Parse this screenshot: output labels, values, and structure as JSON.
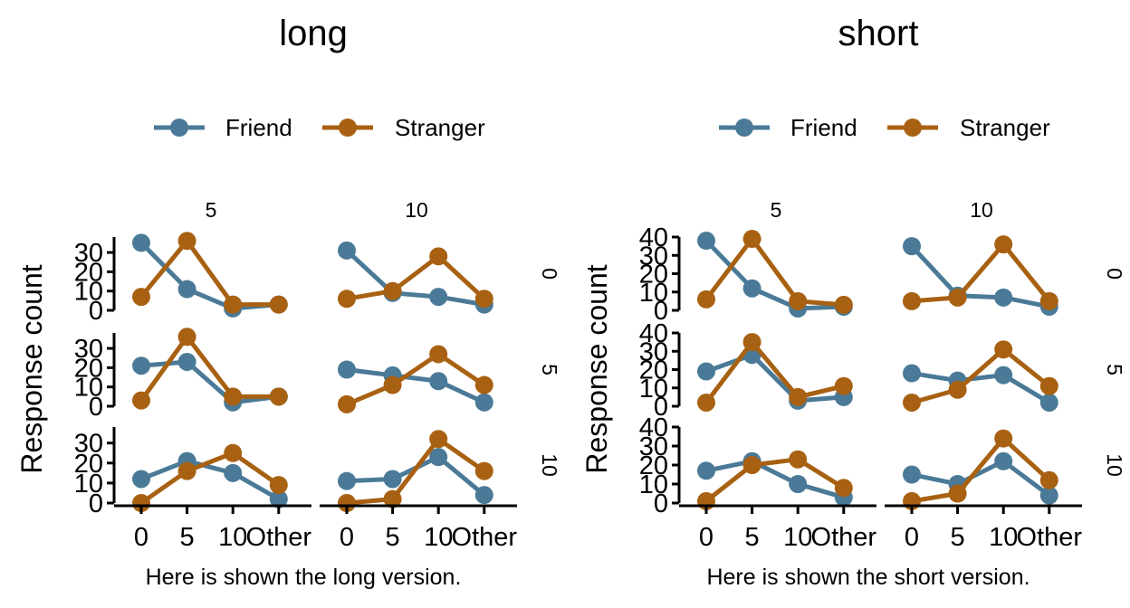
{
  "chart_data": {
    "type": "line",
    "colors": {
      "Friend": "#4a7a97",
      "Stranger": "#a86112"
    },
    "legend": {
      "position": "top",
      "entries": [
        "Friend",
        "Stranger"
      ]
    },
    "grid": false,
    "x_categories": [
      "0",
      "5",
      "10",
      "Other"
    ],
    "col_facets": [
      "5",
      "10"
    ],
    "row_facets": [
      "0",
      "5",
      "10"
    ],
    "panels": [
      {
        "title": "long",
        "xlabel": "Here is shown the long version.",
        "ylabel": "Response count",
        "ylim": [
          0,
          38
        ],
        "y_ticks": [
          0,
          10,
          20,
          30
        ],
        "cells": [
          {
            "row": "0",
            "col": "5",
            "series": [
              {
                "name": "Friend",
                "values": [
                  35,
                  11,
                  1,
                  3
                ]
              },
              {
                "name": "Stranger",
                "values": [
                  7,
                  36,
                  3,
                  3
                ]
              }
            ]
          },
          {
            "row": "0",
            "col": "10",
            "series": [
              {
                "name": "Friend",
                "values": [
                  31,
                  9,
                  7,
                  3
                ]
              },
              {
                "name": "Stranger",
                "values": [
                  6,
                  10,
                  28,
                  6
                ]
              }
            ]
          },
          {
            "row": "5",
            "col": "5",
            "series": [
              {
                "name": "Friend",
                "values": [
                  21,
                  23,
                  2,
                  5
                ]
              },
              {
                "name": "Stranger",
                "values": [
                  3,
                  36,
                  5,
                  5
                ]
              }
            ]
          },
          {
            "row": "5",
            "col": "10",
            "series": [
              {
                "name": "Friend",
                "values": [
                  19,
                  16,
                  13,
                  2
                ]
              },
              {
                "name": "Stranger",
                "values": [
                  1,
                  11,
                  27,
                  11
                ]
              }
            ]
          },
          {
            "row": "10",
            "col": "5",
            "series": [
              {
                "name": "Friend",
                "values": [
                  12,
                  21,
                  15,
                  2
                ]
              },
              {
                "name": "Stranger",
                "values": [
                  0,
                  16,
                  25,
                  9
                ]
              }
            ]
          },
          {
            "row": "10",
            "col": "10",
            "series": [
              {
                "name": "Friend",
                "values": [
                  11,
                  12,
                  23,
                  4
                ]
              },
              {
                "name": "Stranger",
                "values": [
                  0,
                  2,
                  32,
                  16
                ]
              }
            ]
          }
        ]
      },
      {
        "title": "short",
        "xlabel": "Here is shown the short version.",
        "ylabel": "Response count",
        "ylim": [
          0,
          40
        ],
        "y_ticks": [
          0,
          10,
          20,
          30,
          40
        ],
        "cells": [
          {
            "row": "0",
            "col": "5",
            "series": [
              {
                "name": "Friend",
                "values": [
                  38,
                  12,
                  1,
                  2
                ]
              },
              {
                "name": "Stranger",
                "values": [
                  6,
                  39,
                  5,
                  3
                ]
              }
            ]
          },
          {
            "row": "0",
            "col": "10",
            "series": [
              {
                "name": "Friend",
                "values": [
                  35,
                  8,
                  7,
                  2
                ]
              },
              {
                "name": "Stranger",
                "values": [
                  5,
                  7,
                  36,
                  5
                ]
              }
            ]
          },
          {
            "row": "5",
            "col": "5",
            "series": [
              {
                "name": "Friend",
                "values": [
                  19,
                  28,
                  3,
                  5
                ]
              },
              {
                "name": "Stranger",
                "values": [
                  2,
                  35,
                  5,
                  11
                ]
              }
            ]
          },
          {
            "row": "5",
            "col": "10",
            "series": [
              {
                "name": "Friend",
                "values": [
                  18,
                  14,
                  17,
                  2
                ]
              },
              {
                "name": "Stranger",
                "values": [
                  2,
                  9,
                  31,
                  11
                ]
              }
            ]
          },
          {
            "row": "10",
            "col": "5",
            "series": [
              {
                "name": "Friend",
                "values": [
                  17,
                  22,
                  10,
                  3
                ]
              },
              {
                "name": "Stranger",
                "values": [
                  1,
                  20,
                  23,
                  8
                ]
              }
            ]
          },
          {
            "row": "10",
            "col": "10",
            "series": [
              {
                "name": "Friend",
                "values": [
                  15,
                  10,
                  22,
                  4
                ]
              },
              {
                "name": "Stranger",
                "values": [
                  1,
                  5,
                  34,
                  12
                ]
              }
            ]
          }
        ]
      }
    ]
  }
}
